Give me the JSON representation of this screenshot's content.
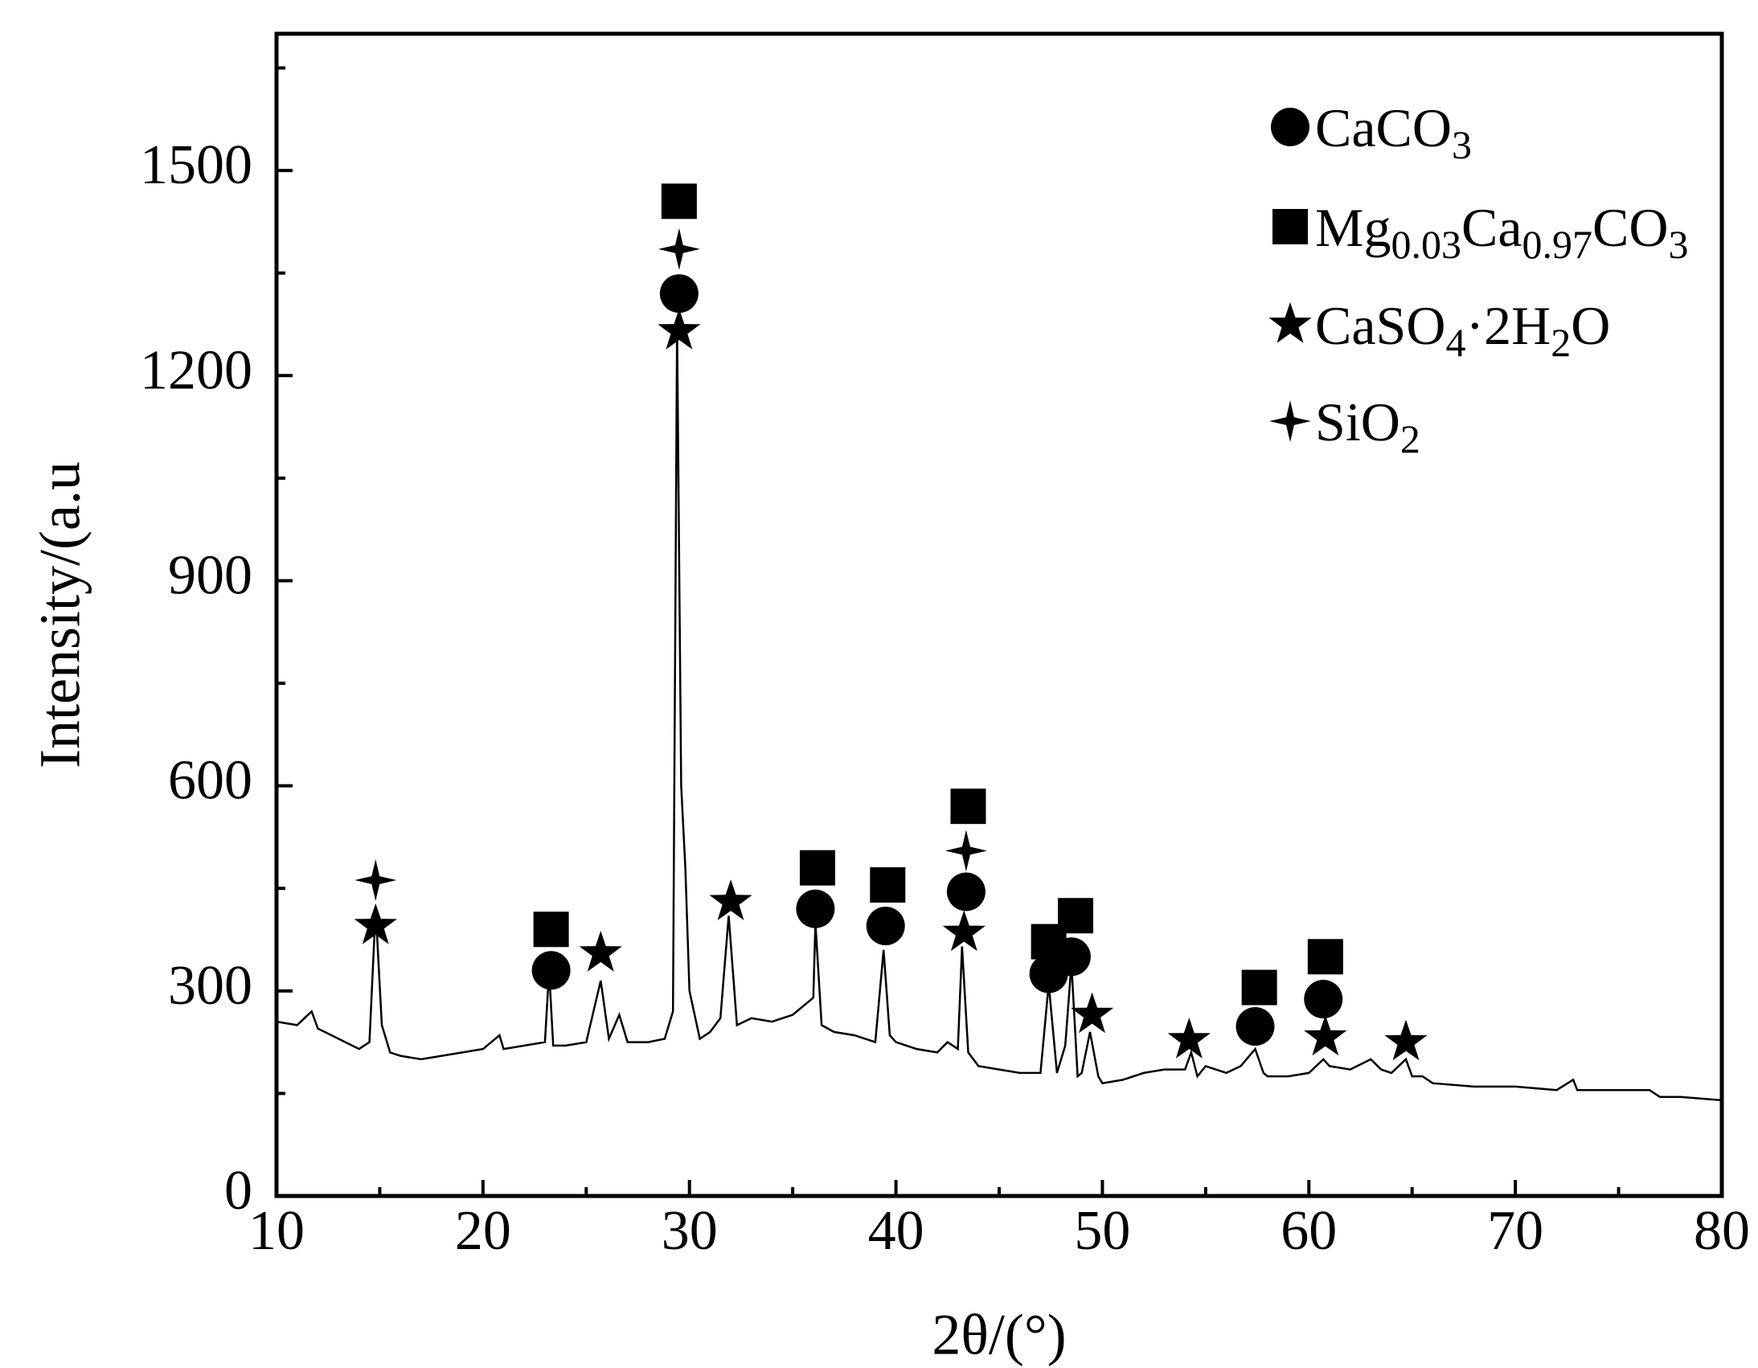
{
  "chart_data": {
    "type": "line",
    "x_label": "2θ/(°)",
    "y_label": "Intensity/(a.u",
    "xlim": [
      10,
      80
    ],
    "ylim": [
      0,
      1700
    ],
    "xticks": [
      10,
      20,
      30,
      40,
      50,
      60,
      70,
      80
    ],
    "yticks": [
      0,
      300,
      600,
      900,
      1200,
      1500
    ],
    "color": "#000000",
    "x": [
      10,
      11,
      11.7,
      12,
      13,
      14,
      14.5,
      14.8,
      15.1,
      15.5,
      16,
      17,
      18,
      19,
      20,
      20.8,
      21,
      22,
      23,
      23.2,
      23.4,
      24,
      25,
      25.7,
      26.1,
      26.6,
      27,
      28,
      28.8,
      29.2,
      29.4,
      29.6,
      29.8,
      30,
      30.5,
      31,
      31.5,
      31.9,
      32.3,
      33,
      34,
      35,
      36,
      36.1,
      36.4,
      37,
      38,
      39,
      39.4,
      39.7,
      40,
      41,
      42,
      42.5,
      43,
      43.2,
      43.5,
      44,
      45,
      46,
      47,
      47.4,
      47.8,
      48.2,
      48.5,
      48.8,
      49,
      49.4,
      49.8,
      50,
      51,
      52,
      53,
      54,
      54.3,
      54.6,
      55,
      56,
      56.7,
      57.4,
      57.8,
      58,
      59,
      60,
      60.7,
      61,
      62,
      63,
      63.5,
      64,
      64.7,
      65,
      65.5,
      66,
      68,
      70,
      72,
      72.8,
      73,
      75,
      76.5,
      77,
      78,
      80
    ],
    "values": [
      255,
      250,
      270,
      245,
      230,
      215,
      225,
      420,
      250,
      210,
      205,
      200,
      205,
      210,
      215,
      235,
      215,
      220,
      225,
      330,
      220,
      220,
      225,
      315,
      230,
      265,
      225,
      225,
      230,
      270,
      1270,
      600,
      480,
      300,
      230,
      240,
      260,
      410,
      250,
      260,
      255,
      265,
      290,
      400,
      250,
      240,
      235,
      225,
      360,
      235,
      225,
      215,
      210,
      225,
      215,
      365,
      210,
      190,
      185,
      180,
      180,
      310,
      180,
      220,
      340,
      175,
      180,
      240,
      175,
      165,
      170,
      180,
      185,
      185,
      210,
      175,
      190,
      180,
      190,
      215,
      180,
      175,
      175,
      180,
      200,
      190,
      185,
      200,
      185,
      180,
      200,
      175,
      175,
      165,
      160,
      160,
      155,
      170,
      155,
      155,
      155,
      145,
      145,
      140
    ],
    "markers": [
      {
        "name": [
          "CaCO",
          "3"
        ],
        "shape": "circle",
        "color": "#000000",
        "x": [
          23.3,
          29.5,
          36.1,
          39.5,
          43.4,
          47.4,
          48.5,
          57.4,
          60.7
        ],
        "y": [
          330,
          1320,
          420,
          395,
          445,
          325,
          350,
          248,
          288
        ]
      },
      {
        "name": [
          "Mg",
          "0.03",
          "Ca",
          "0.97",
          "CO",
          "3"
        ],
        "shape": "square",
        "color": "#000000",
        "x": [
          23.3,
          29.5,
          36.2,
          39.6,
          43.5,
          47.4,
          48.7,
          57.6,
          60.8
        ],
        "y": [
          390,
          1455,
          480,
          455,
          570,
          372,
          410,
          305,
          350
        ]
      },
      {
        "name": [
          "CaSO",
          "4",
          "·2H",
          "2",
          "O"
        ],
        "shape": "star",
        "color": "#000000",
        "x": [
          14.8,
          25.7,
          29.5,
          32,
          43.3,
          49.5,
          54.2,
          60.8,
          64.7
        ],
        "y": [
          395,
          355,
          1265,
          430,
          385,
          265,
          228,
          232,
          225
        ]
      },
      {
        "name": [
          "SiO",
          "2"
        ],
        "shape": "star4",
        "color": "#000000",
        "x": [
          14.8,
          29.5,
          43.4
        ],
        "y": [
          462,
          1385,
          505
        ]
      }
    ]
  }
}
